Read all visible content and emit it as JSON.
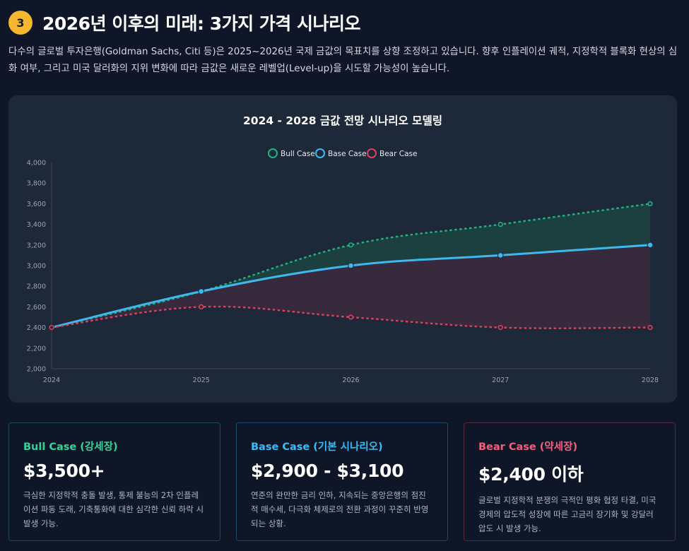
{
  "header": {
    "badge": "3",
    "title": "2026년 이후의 미래: 3가지 가격 시나리오",
    "intro": "다수의 글로벌 투자은행(Goldman Sachs, Citi 등)은 2025~2026년 국제 금값의 목표치를 상향 조정하고 있습니다. 향후 인플레이션 궤적, 지정학적 블록화 현상의 심화 여부, 그리고 미국 달러화의 지위 변화에 따라 금값은 새로운 레벨업(Level-up)을 시도할 가능성이 높습니다."
  },
  "colors": {
    "bull": "#1fb57e",
    "base": "#3fb8ee",
    "bear": "#e0405f",
    "bull_title": "#34d399",
    "base_title": "#38bdf8",
    "bear_title": "#f0607e"
  },
  "chart_data": {
    "type": "line",
    "title": "2024 - 2028 금값 전망 시나리오 모델링",
    "categories": [
      "2024",
      "2025",
      "2026",
      "2027",
      "2028"
    ],
    "series": [
      {
        "name": "Bull Case",
        "values": [
          2400,
          2750,
          3200,
          3400,
          3600
        ],
        "style": "dashed"
      },
      {
        "name": "Base Case",
        "values": [
          2400,
          2750,
          3000,
          3100,
          3200
        ],
        "style": "solid"
      },
      {
        "name": "Bear Case",
        "values": [
          2400,
          2600,
          2500,
          2400,
          2400
        ],
        "style": "dashed"
      }
    ],
    "ylim": [
      2000,
      4000
    ],
    "yticks": [
      "2,000",
      "2,200",
      "2,400",
      "2,600",
      "2,800",
      "3,000",
      "3,200",
      "3,400",
      "3,600",
      "3,800",
      "4,000"
    ],
    "legend": "top"
  },
  "cards": [
    {
      "key": "bull",
      "title": "Bull Case (강세장)",
      "value": "$3,500+",
      "desc": "극심한 지정학적 충돌 발생, 통제 불능의 2차 인플레이션 파동 도래, 기축통화에 대한 심각한 신뢰 하락 시 발생 가능."
    },
    {
      "key": "base",
      "title": "Base Case (기본 시나리오)",
      "value": "$2,900 - $3,100",
      "desc": "연준의 완만한 금리 인하, 지속되는 중앙은행의 점진적 매수세, 다극화 체제로의 전환 과정이 꾸준히 반영되는 상황."
    },
    {
      "key": "bear",
      "title": "Bear Case (약세장)",
      "value": "$2,400 이하",
      "desc": "글로벌 지정학적 분쟁의 극적인 평화 협정 타결, 미국 경제의 압도적 성장에 따른 고금리 장기화 및 강달러 압도 시 발생 가능."
    }
  ]
}
